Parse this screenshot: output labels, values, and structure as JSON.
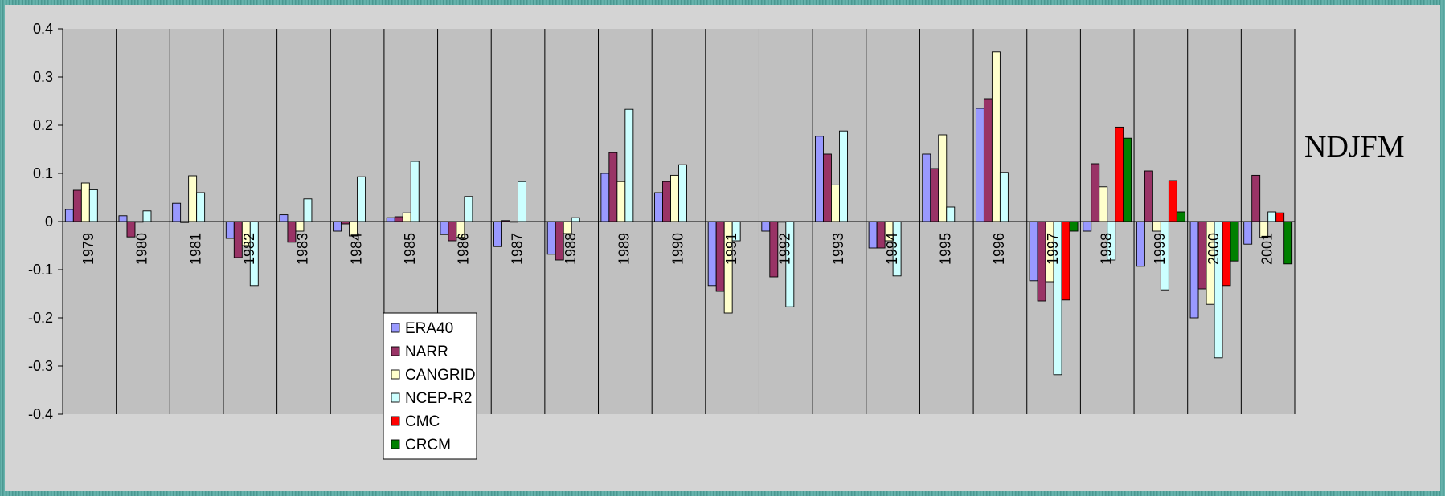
{
  "chart_data": {
    "type": "bar",
    "title": "NDJFM",
    "xlabel": "",
    "ylabel": "",
    "ylim": [
      -0.4,
      0.4
    ],
    "yticks": [
      "0.4",
      "0.3",
      "0.2",
      "0.1",
      "0",
      "-0.1",
      "-0.2",
      "-0.3",
      "-0.4"
    ],
    "grid": false,
    "legend_position": "lower-middle",
    "categories": [
      "1979",
      "1980",
      "1981",
      "1982",
      "1983",
      "1984",
      "1985",
      "1986",
      "1987",
      "1988",
      "1989",
      "1990",
      "1991",
      "1992",
      "1993",
      "1994",
      "1995",
      "1996",
      "1997",
      "1998",
      "1999",
      "2000",
      "2001"
    ],
    "series": [
      {
        "name": "ERA40",
        "color": "#9999ff",
        "values": [
          0.025,
          0.012,
          0.038,
          -0.035,
          0.014,
          -0.02,
          0.008,
          -0.027,
          -0.052,
          -0.068,
          0.1,
          0.06,
          -0.133,
          -0.02,
          0.177,
          -0.055,
          0.14,
          0.235,
          -0.123,
          -0.02,
          -0.093,
          -0.2,
          -0.047
        ]
      },
      {
        "name": "NARR",
        "color": "#993366",
        "values": [
          0.065,
          -0.032,
          -0.002,
          -0.075,
          -0.043,
          -0.005,
          0.01,
          -0.04,
          0.002,
          -0.08,
          0.143,
          0.083,
          -0.145,
          -0.115,
          0.14,
          -0.055,
          0.11,
          0.255,
          -0.165,
          0.12,
          0.105,
          -0.14,
          0.096
        ]
      },
      {
        "name": "CANGRID",
        "color": "#ffffcc",
        "values": [
          0.08,
          0.0,
          0.095,
          -0.05,
          -0.02,
          -0.03,
          0.018,
          -0.033,
          0.0,
          -0.025,
          0.083,
          0.096,
          -0.19,
          0.0,
          0.076,
          -0.04,
          0.18,
          0.352,
          -0.125,
          0.072,
          -0.02,
          -0.172,
          -0.033
        ]
      },
      {
        "name": "NCEP-R2",
        "color": "#ccffff",
        "values": [
          0.066,
          0.022,
          0.06,
          -0.133,
          0.047,
          0.093,
          0.125,
          0.052,
          0.083,
          0.008,
          0.233,
          0.118,
          -0.04,
          -0.177,
          0.188,
          -0.113,
          0.03,
          0.102,
          -0.318,
          -0.08,
          -0.142,
          -0.283,
          0.02
        ]
      },
      {
        "name": "CMC",
        "color": "#ff0000",
        "values": [
          null,
          null,
          null,
          null,
          null,
          null,
          null,
          null,
          null,
          null,
          null,
          null,
          null,
          null,
          null,
          null,
          null,
          null,
          -0.163,
          0.196,
          0.085,
          -0.133,
          0.018
        ]
      },
      {
        "name": "CRCM",
        "color": "#008000",
        "values": [
          null,
          null,
          null,
          null,
          null,
          null,
          null,
          null,
          null,
          null,
          null,
          null,
          null,
          null,
          null,
          null,
          null,
          null,
          -0.02,
          0.173,
          0.02,
          -0.082,
          -0.088
        ]
      }
    ]
  }
}
